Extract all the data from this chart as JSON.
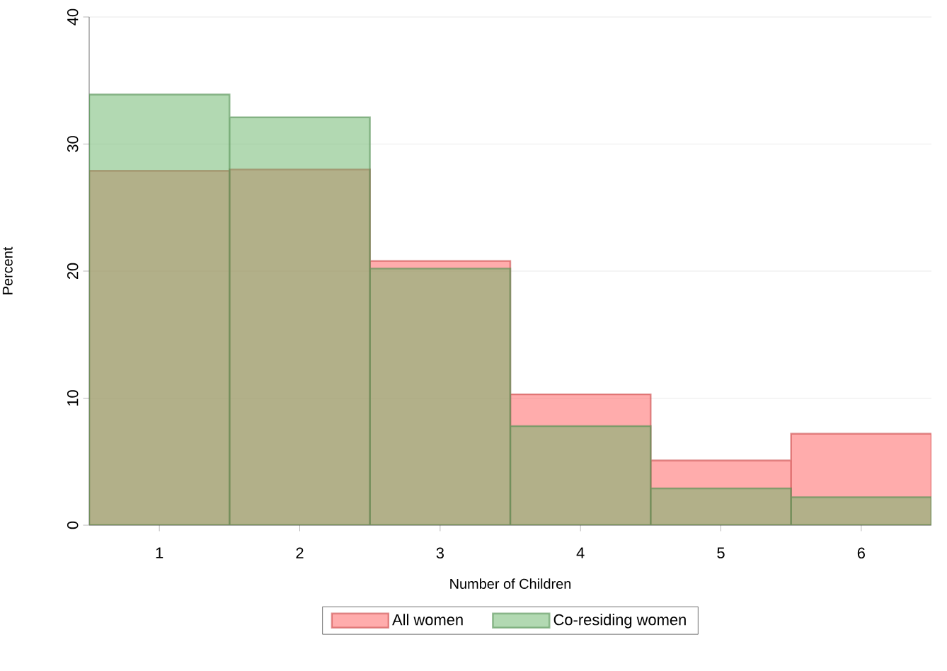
{
  "chart_data": {
    "type": "histogram",
    "xlabel": "Number of Children",
    "ylabel": "Percent",
    "bins": [
      0.5,
      1.5,
      2.5,
      3.5,
      4.5,
      5.5,
      6.5
    ],
    "series": [
      {
        "name": "All women",
        "color": "#ff5a5a",
        "values": [
          27.9,
          28.0,
          20.8,
          10.3,
          5.1,
          7.2
        ]
      },
      {
        "name": "Co-residing women",
        "color": "#66b366",
        "values": [
          33.9,
          32.1,
          20.2,
          7.8,
          2.9,
          2.2
        ]
      }
    ],
    "xlim": [
      0.5,
      6.5
    ],
    "xticks": [
      1,
      2,
      3,
      4,
      5,
      6
    ],
    "ylim": [
      0,
      40
    ],
    "yticks": [
      0,
      10,
      20,
      30,
      40
    ],
    "grid": "y",
    "legend": "bottom"
  }
}
